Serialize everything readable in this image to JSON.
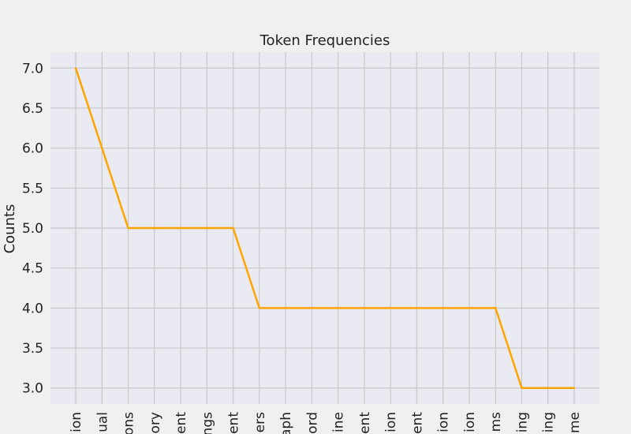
{
  "chart_data": {
    "type": "line",
    "title": "Token Frequencies",
    "xlabel": "",
    "ylabel": "Counts",
    "categories": [
      "ion",
      "ual",
      "ons",
      "ory",
      "ent",
      "ngs",
      "ent",
      "ers",
      "aph",
      "ord",
      "ine",
      "ent",
      "ion",
      "ent",
      "ion",
      "ion",
      "ms",
      "ing",
      "ing",
      "me"
    ],
    "values": [
      7,
      6,
      5,
      5,
      5,
      5,
      5,
      4,
      4,
      4,
      4,
      4,
      4,
      4,
      4,
      4,
      4,
      3,
      3,
      3
    ],
    "yticks": [
      "3.0",
      "3.5",
      "4.0",
      "4.5",
      "5.0",
      "5.5",
      "6.0",
      "6.5",
      "7.0"
    ],
    "ylim": [
      2.8,
      7.2
    ],
    "grid": true,
    "colors": {
      "background": "#f0f0f0",
      "plot_background": "#eaeaf2",
      "grid": "#c8c8c8",
      "line": "#ffa500"
    }
  }
}
